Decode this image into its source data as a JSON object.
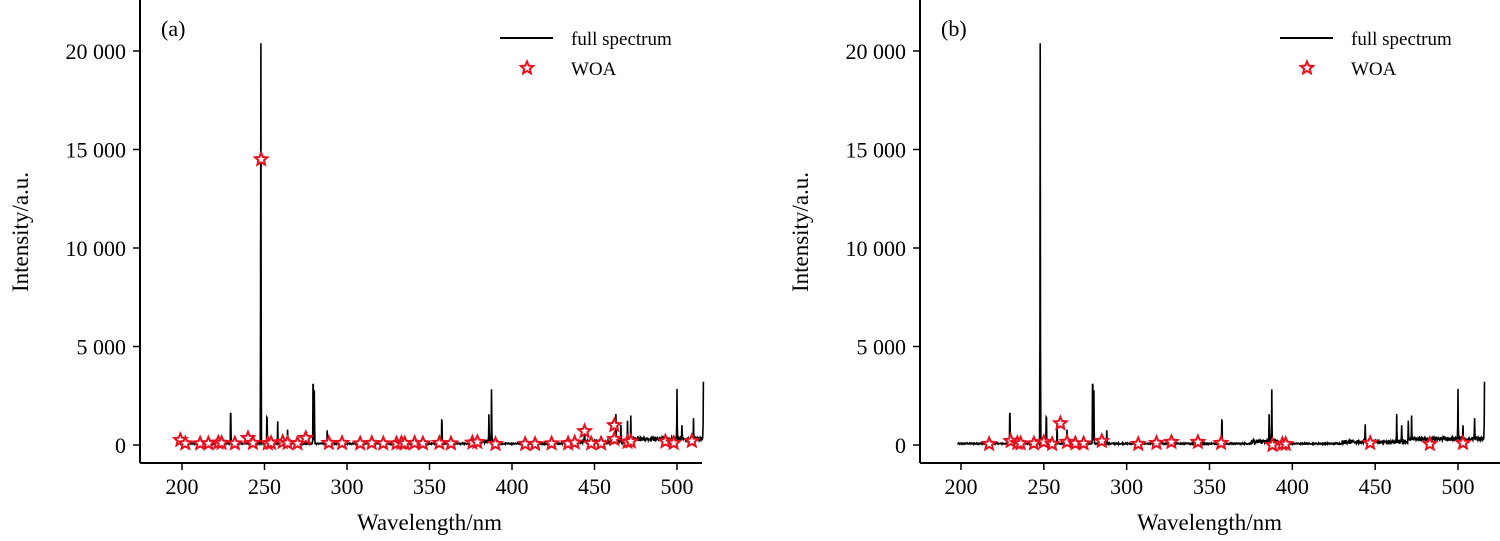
{
  "colors": {
    "line": "#000000",
    "star": "#e8101f"
  },
  "chart_data": [
    {
      "type": "line",
      "panel_label": "(a)",
      "xlabel": "Wavelength/nm",
      "ylabel": "Intensity/a.u.",
      "xlim": [
        176,
        518
      ],
      "ylim": [
        -900,
        22500
      ],
      "xticks": [
        200,
        250,
        300,
        350,
        400,
        450,
        500
      ],
      "xtick_labels": [
        "200",
        "250",
        "300",
        "350",
        "400",
        "450",
        "500"
      ],
      "yticks": [
        0,
        5000,
        10000,
        15000,
        20000
      ],
      "ytick_labels": [
        "0",
        "5 000",
        "10 000",
        "15 000",
        "20 000"
      ],
      "legend": {
        "position": "top-right",
        "entries": [
          "full spectrum",
          "WOA"
        ]
      },
      "series": [
        {
          "name": "full spectrum",
          "kind": "line",
          "range": [
            198,
            516
          ],
          "peaks": [
            [
              229.5,
              2200
            ],
            [
              247.8,
              20300
            ],
            [
              251.5,
              1900
            ],
            [
              258,
              1100
            ],
            [
              264,
              700
            ],
            [
              279.5,
              4250
            ],
            [
              280.2,
              2700
            ],
            [
              288,
              700
            ],
            [
              357.5,
              1700
            ],
            [
              386,
              1400
            ],
            [
              387.6,
              2600
            ],
            [
              444,
              900
            ],
            [
              463,
              1500
            ],
            [
              466,
              800
            ],
            [
              470,
              1000
            ],
            [
              472,
              1100
            ],
            [
              500,
              2600
            ],
            [
              503,
              700
            ],
            [
              510,
              1100
            ],
            [
              516,
              2800
            ]
          ]
        },
        {
          "name": "WOA",
          "kind": "scatter-star",
          "points": [
            [
              199,
              250
            ],
            [
              202,
              80
            ],
            [
              211,
              80
            ],
            [
              216,
              80
            ],
            [
              222,
              120
            ],
            [
              224,
              100
            ],
            [
              232,
              80
            ],
            [
              240,
              350
            ],
            [
              243,
              100
            ],
            [
              248,
              14500
            ],
            [
              252,
              80
            ],
            [
              254,
              100
            ],
            [
              261,
              150
            ],
            [
              264,
              100
            ],
            [
              270,
              80
            ],
            [
              275,
              350
            ],
            [
              289,
              100
            ],
            [
              297,
              100
            ],
            [
              308,
              80
            ],
            [
              315,
              100
            ],
            [
              322,
              80
            ],
            [
              330,
              80
            ],
            [
              333,
              100
            ],
            [
              335,
              80
            ],
            [
              341,
              100
            ],
            [
              346,
              80
            ],
            [
              356,
              100
            ],
            [
              363,
              80
            ],
            [
              376,
              120
            ],
            [
              379,
              150
            ],
            [
              390,
              50
            ],
            [
              408,
              50
            ],
            [
              414,
              50
            ],
            [
              424,
              80
            ],
            [
              434,
              80
            ],
            [
              438,
              120
            ],
            [
              444,
              700
            ],
            [
              448,
              80
            ],
            [
              454,
              80
            ],
            [
              462,
              1000
            ],
            [
              462,
              300
            ],
            [
              470,
              150
            ],
            [
              472,
              180
            ],
            [
              493,
              180
            ],
            [
              498,
              100
            ],
            [
              509,
              200
            ]
          ]
        }
      ]
    },
    {
      "type": "line",
      "panel_label": "(b)",
      "xlabel": "Wavelength/nm",
      "ylabel": "Intensity/a.u.",
      "xlim": [
        176,
        518
      ],
      "ylim": [
        -900,
        22500
      ],
      "xticks": [
        200,
        250,
        300,
        350,
        400,
        450,
        500
      ],
      "xtick_labels": [
        "200",
        "250",
        "300",
        "350",
        "400",
        "450",
        "500"
      ],
      "yticks": [
        0,
        5000,
        10000,
        15000,
        20000
      ],
      "ytick_labels": [
        "0",
        "5 000",
        "10 000",
        "15 000",
        "20 000"
      ],
      "legend": {
        "position": "top-right",
        "entries": [
          "full spectrum",
          "WOA"
        ]
      },
      "series": [
        {
          "name": "full spectrum",
          "kind": "line",
          "range": [
            198,
            516
          ],
          "peaks": [
            [
              229.5,
              2200
            ],
            [
              247.8,
              20300
            ],
            [
              251.5,
              1900
            ],
            [
              258,
              1100
            ],
            [
              264,
              700
            ],
            [
              279.5,
              4250
            ],
            [
              280.2,
              2700
            ],
            [
              288,
              700
            ],
            [
              357.5,
              1700
            ],
            [
              386,
              1400
            ],
            [
              387.6,
              2600
            ],
            [
              444,
              900
            ],
            [
              463,
              1500
            ],
            [
              466,
              800
            ],
            [
              470,
              1000
            ],
            [
              472,
              1100
            ],
            [
              500,
              2600
            ],
            [
              503,
              700
            ],
            [
              510,
              1100
            ],
            [
              516,
              2800
            ]
          ]
        },
        {
          "name": "WOA",
          "kind": "scatter-star",
          "points": [
            [
              217,
              50
            ],
            [
              230,
              200
            ],
            [
              234,
              100
            ],
            [
              236,
              80
            ],
            [
              244,
              80
            ],
            [
              250,
              150
            ],
            [
              255,
              50
            ],
            [
              260,
              1100
            ],
            [
              264,
              150
            ],
            [
              269,
              80
            ],
            [
              274,
              80
            ],
            [
              285,
              200
            ],
            [
              307,
              50
            ],
            [
              318,
              100
            ],
            [
              327,
              150
            ],
            [
              343,
              150
            ],
            [
              357,
              100
            ],
            [
              388,
              0
            ],
            [
              394,
              50
            ],
            [
              396,
              50
            ],
            [
              447,
              100
            ],
            [
              483,
              50
            ],
            [
              503,
              100
            ]
          ]
        }
      ]
    }
  ]
}
